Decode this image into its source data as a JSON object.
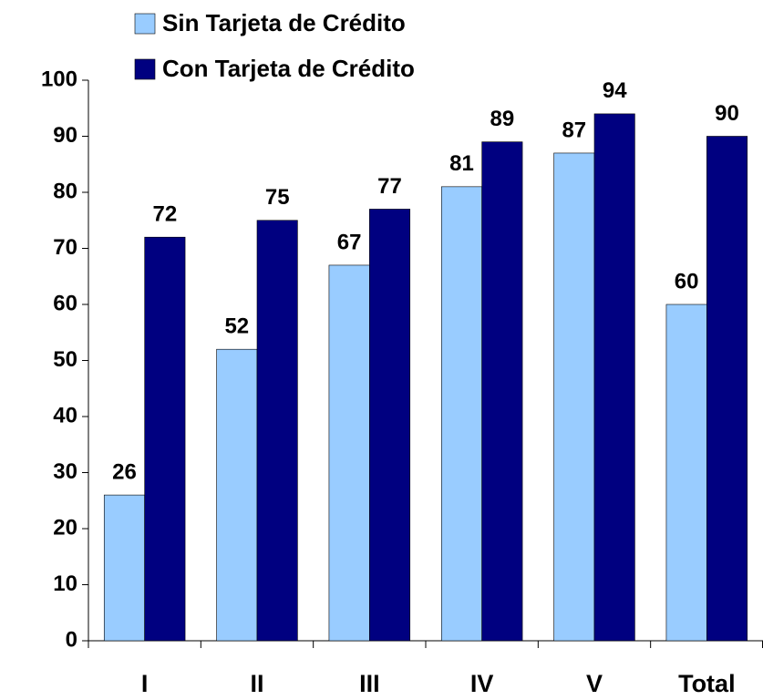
{
  "chart_data": {
    "type": "bar",
    "categories": [
      "I",
      "II",
      "III",
      "IV",
      "V",
      "Total"
    ],
    "series": [
      {
        "name": "Sin Tarjeta de Crédito",
        "color": "#99ccff",
        "values": [
          26,
          52,
          67,
          81,
          87,
          60
        ]
      },
      {
        "name": "Con Tarjeta de Crédito",
        "color": "#000080",
        "values": [
          72,
          75,
          77,
          89,
          94,
          90
        ]
      }
    ],
    "ylim": [
      0,
      100
    ],
    "yticks": [
      0,
      10,
      20,
      30,
      40,
      50,
      60,
      70,
      80,
      90,
      100
    ],
    "grid": false,
    "legend": "top"
  }
}
